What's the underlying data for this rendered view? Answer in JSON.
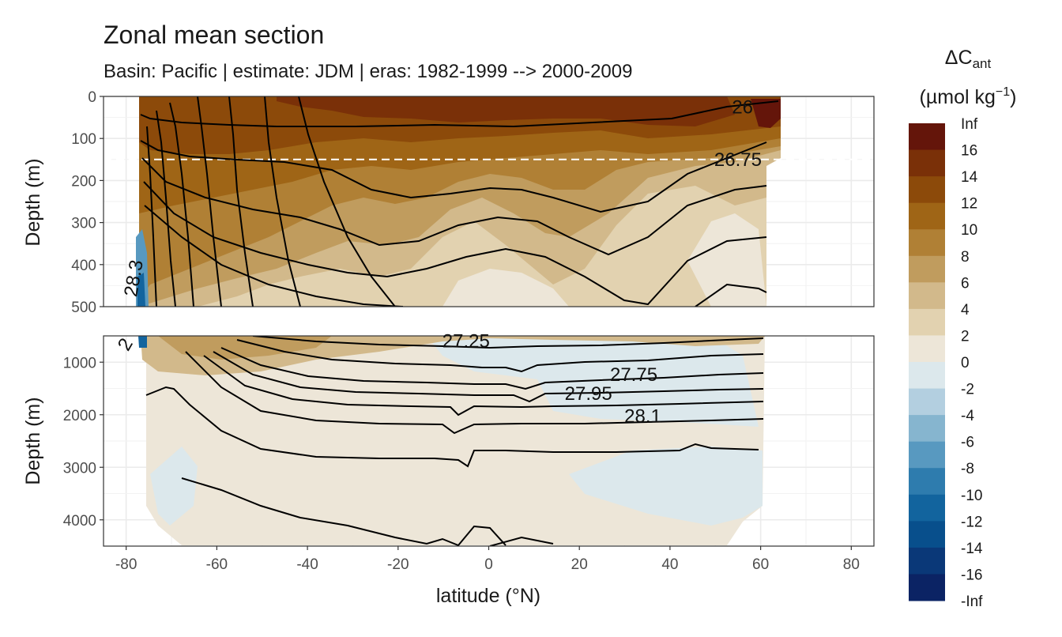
{
  "chart_data": {
    "type": "heatmap",
    "title": "Zonal mean section",
    "subtitle": "Basin: Pacific | estimate: JDM  | eras: 1982-1999 --> 2000-2009",
    "xlabel": "latitude (°N)",
    "ylabel_top": "Depth (m)",
    "ylabel_bottom": "Depth (m)",
    "xlim": [
      -85,
      85
    ],
    "x_ticks": [
      -80,
      -60,
      -40,
      -20,
      0,
      20,
      40,
      60,
      80
    ],
    "x_tick_labels": [
      "-80",
      "-60",
      "-40",
      "-20",
      "0",
      "20",
      "40",
      "60",
      "80"
    ],
    "panels": [
      {
        "ylim": [
          0,
          500
        ],
        "y_ticks": [
          0,
          100,
          200,
          300,
          400,
          500
        ],
        "y_tick_labels": [
          "0",
          "100",
          "200",
          "300",
          "400",
          "500"
        ]
      },
      {
        "ylim": [
          500,
          4500
        ],
        "y_ticks": [
          1000,
          2000,
          3000,
          4000
        ],
        "y_tick_labels": [
          "1000",
          "2000",
          "3000",
          "4000"
        ]
      }
    ],
    "reference_line_depth": 150,
    "grid": true,
    "legend": {
      "title": "ΔC",
      "title_sub": "ant",
      "unit_prefix": "(µmol kg",
      "unit_sup": "−1",
      "unit_suffix": ")",
      "placement": "right",
      "labels": [
        "Inf",
        "16",
        "14",
        "12",
        "10",
        "8",
        "6",
        "4",
        "2",
        "0",
        "-2",
        "-4",
        "-6",
        "-8",
        "-10",
        "-12",
        "-14",
        "-16",
        "-Inf"
      ],
      "colors": [
        "#64150a",
        "#7a3008",
        "#8c4a0a",
        "#9f6516",
        "#b08035",
        "#c09c5e",
        "#d2b98b",
        "#e2d2b0",
        "#ede6d8",
        "#dce8ec",
        "#b3cfe0",
        "#86b5cf",
        "#5899c0",
        "#2e7cae",
        "#12649e",
        "#084f8c",
        "#0a3878",
        "#0b2364"
      ]
    },
    "contour_labels": [
      {
        "text": "26",
        "lat": 56,
        "depth": 25
      },
      {
        "text": "26.75",
        "lat": 55,
        "depth": 150
      },
      {
        "text": "28.3",
        "lat": -77,
        "depth": 420
      },
      {
        "text": "27.25",
        "lat": -5,
        "depth": 600
      },
      {
        "text": "27.75",
        "lat": 32,
        "depth": 1240
      },
      {
        "text": "27.95",
        "lat": 22,
        "depth": 1600
      },
      {
        "text": "28.1",
        "lat": 34,
        "depth": 2030
      },
      {
        "text": "2",
        "lat": -79,
        "depth": 600
      }
    ]
  }
}
